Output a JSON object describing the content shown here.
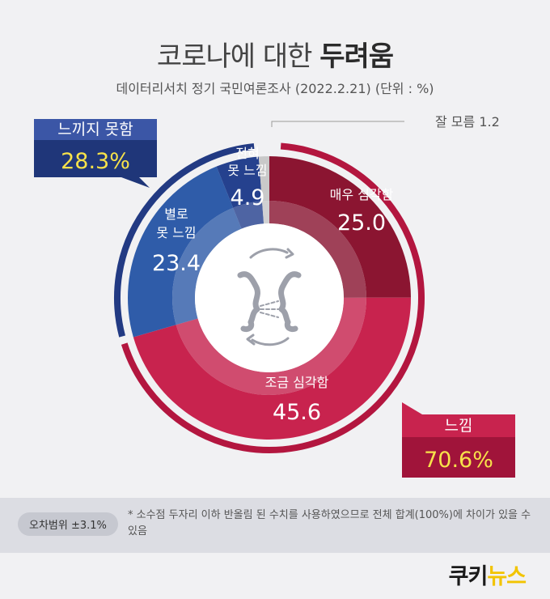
{
  "header": {
    "title_normal": "코로나에 대한",
    "title_bold": "두려움",
    "subtitle": "데이터리서치 정기 국민여론조사 (2022.2.21)  (단위 : %)"
  },
  "chart_data": {
    "type": "pie",
    "title": "코로나에 대한 두려움",
    "unit": "%",
    "slices": [
      {
        "label": "매우 심각함",
        "value": 25.0,
        "value_text": "25.0",
        "color": "#8b1531"
      },
      {
        "label": "조금 심각함",
        "value": 45.6,
        "value_text": "45.6",
        "color": "#c8234e"
      },
      {
        "label": "별로 못 느낌",
        "value": 23.4,
        "value_text": "23.4",
        "color": "#2f5ca9"
      },
      {
        "label": "전혀 못 느낌",
        "value": 4.9,
        "value_text": "4.9",
        "color": "#25418e"
      },
      {
        "label": "잘 모름",
        "value": 1.2,
        "value_text": "1.2",
        "color": "#c9c9c9"
      }
    ],
    "groups": [
      {
        "label": "느낌",
        "value": 70.6,
        "value_text": "70.6%",
        "color": "#b3163f"
      },
      {
        "label": "느끼지 못함",
        "value": 28.3,
        "value_text": "28.3%",
        "color": "#223a83"
      }
    ],
    "annotation": "잘 모름 1.2"
  },
  "footer": {
    "margin_of_error": "오차범위 ±3.1%",
    "note": "* 소수점 두자리 이하 반올림 된 수치를 사용하였으므로 전체 합계(100%)에 차이가 있을 수 있음"
  },
  "logo": {
    "part1": "쿠키",
    "part2": "뉴스"
  }
}
